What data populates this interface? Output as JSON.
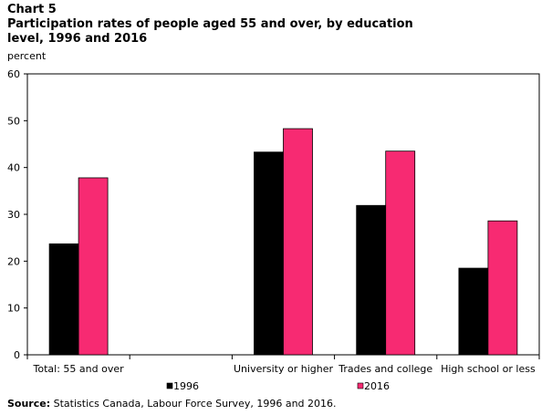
{
  "chart_label": "Chart 5",
  "source_prefix": "Source:",
  "source_text": " Statistics Canada, Labour Force Survey, 1996 and 2016.",
  "colors": {
    "s1996": "#000000",
    "s2016": "#f72a72",
    "axis": "#000000"
  },
  "chart_data": {
    "type": "bar",
    "title": "Participation rates of people aged 55 and over, by education level, 1996 and 2016",
    "ylabel": "percent",
    "xlabel": "",
    "ylim": [
      0,
      60
    ],
    "yticks": [
      0,
      10,
      20,
      30,
      40,
      50,
      60
    ],
    "grid": false,
    "legend_position": "bottom",
    "categories": [
      "Total: 55 and over",
      "",
      "University or higher",
      "Trades and college",
      "High school or less"
    ],
    "series": [
      {
        "name": "1996",
        "values": [
          23.7,
          null,
          43.3,
          31.9,
          18.5
        ]
      },
      {
        "name": "2016",
        "values": [
          37.8,
          null,
          48.3,
          43.5,
          28.6
        ]
      }
    ]
  }
}
